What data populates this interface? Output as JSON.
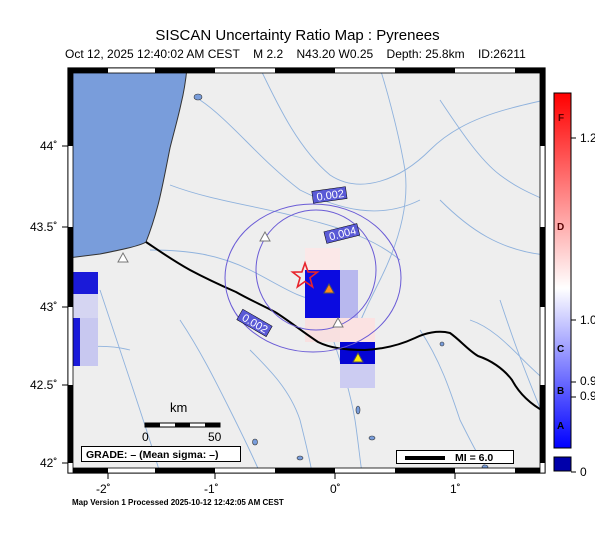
{
  "header": {
    "title": "SISCAN Uncertainty Ratio Map : Pyrenees",
    "date": "Oct 12, 2025 12:40:02 AM CEST",
    "magnitude": "M 2.2",
    "location": "N43.20 W0.25",
    "depth": "Depth: 25.8km",
    "id": "ID:26211"
  },
  "axes": {
    "lat_labels": [
      "44˚",
      "43.5˚",
      "43˚",
      "42.5˚",
      "42˚"
    ],
    "lon_labels": [
      "-2˚",
      "-1˚",
      "0˚",
      "1˚"
    ]
  },
  "contours": {
    "labels": [
      "0.002",
      "0.004",
      "0.002"
    ]
  },
  "scale_bar": {
    "unit": "km",
    "start": "0",
    "end": "50"
  },
  "grade_box": {
    "text": "GRADE: – (Mean sigma: –)"
  },
  "mi_legend": {
    "text": "MI = 6.0"
  },
  "colorbar": {
    "values": [
      "1.2",
      "1.0",
      "0.9",
      "0.9",
      "0"
    ],
    "grades": [
      "F",
      "D",
      "C",
      "B",
      "A"
    ],
    "colors": {
      "top": "#ff0000",
      "mid": "#ffffff",
      "bottom": "#0000ff",
      "null": "#0000aa"
    }
  },
  "epicenter": {
    "lat": 43.2,
    "lon": -0.25,
    "symbol": "star-icon",
    "color": "#e8242c"
  },
  "stations": [
    {
      "type": "seismic",
      "color": "#ff8c1a"
    },
    {
      "type": "seismic",
      "color": "#ffee00"
    },
    {
      "type": "open",
      "color": "#ffffff"
    },
    {
      "type": "open",
      "color": "#ffffff"
    },
    {
      "type": "open",
      "color": "#ffffff"
    }
  ],
  "footer": {
    "text": "Map Version 1 Processed 2025-10-12 12:42:05 AM CEST"
  },
  "colors": {
    "ocean": "#799ddb",
    "land": "#eeeeee",
    "border": "#000000",
    "river": "#8fb2dd",
    "contour": "#6a5bd6"
  }
}
